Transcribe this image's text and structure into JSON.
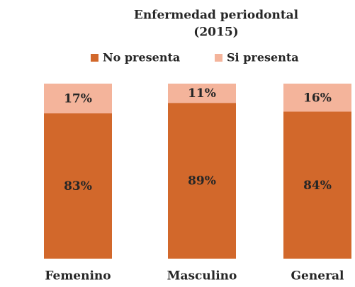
{
  "chart_data": {
    "type": "stacked_bar",
    "title": [
      "Enfermedad periodontal",
      "(2015)"
    ],
    "categories": [
      "Femenino",
      "Masculino",
      "General"
    ],
    "series": [
      {
        "name": "No presenta",
        "color": "#d2682b",
        "values": [
          83,
          89,
          84
        ],
        "value_labels": [
          "83%",
          "89%",
          "84%"
        ]
      },
      {
        "name": "Si presenta",
        "color": "#f4b49b",
        "values": [
          17,
          11,
          16
        ],
        "value_labels": [
          "17%",
          "11%",
          "16%"
        ]
      }
    ],
    "ylim": [
      0,
      100
    ],
    "legend": "top"
  }
}
